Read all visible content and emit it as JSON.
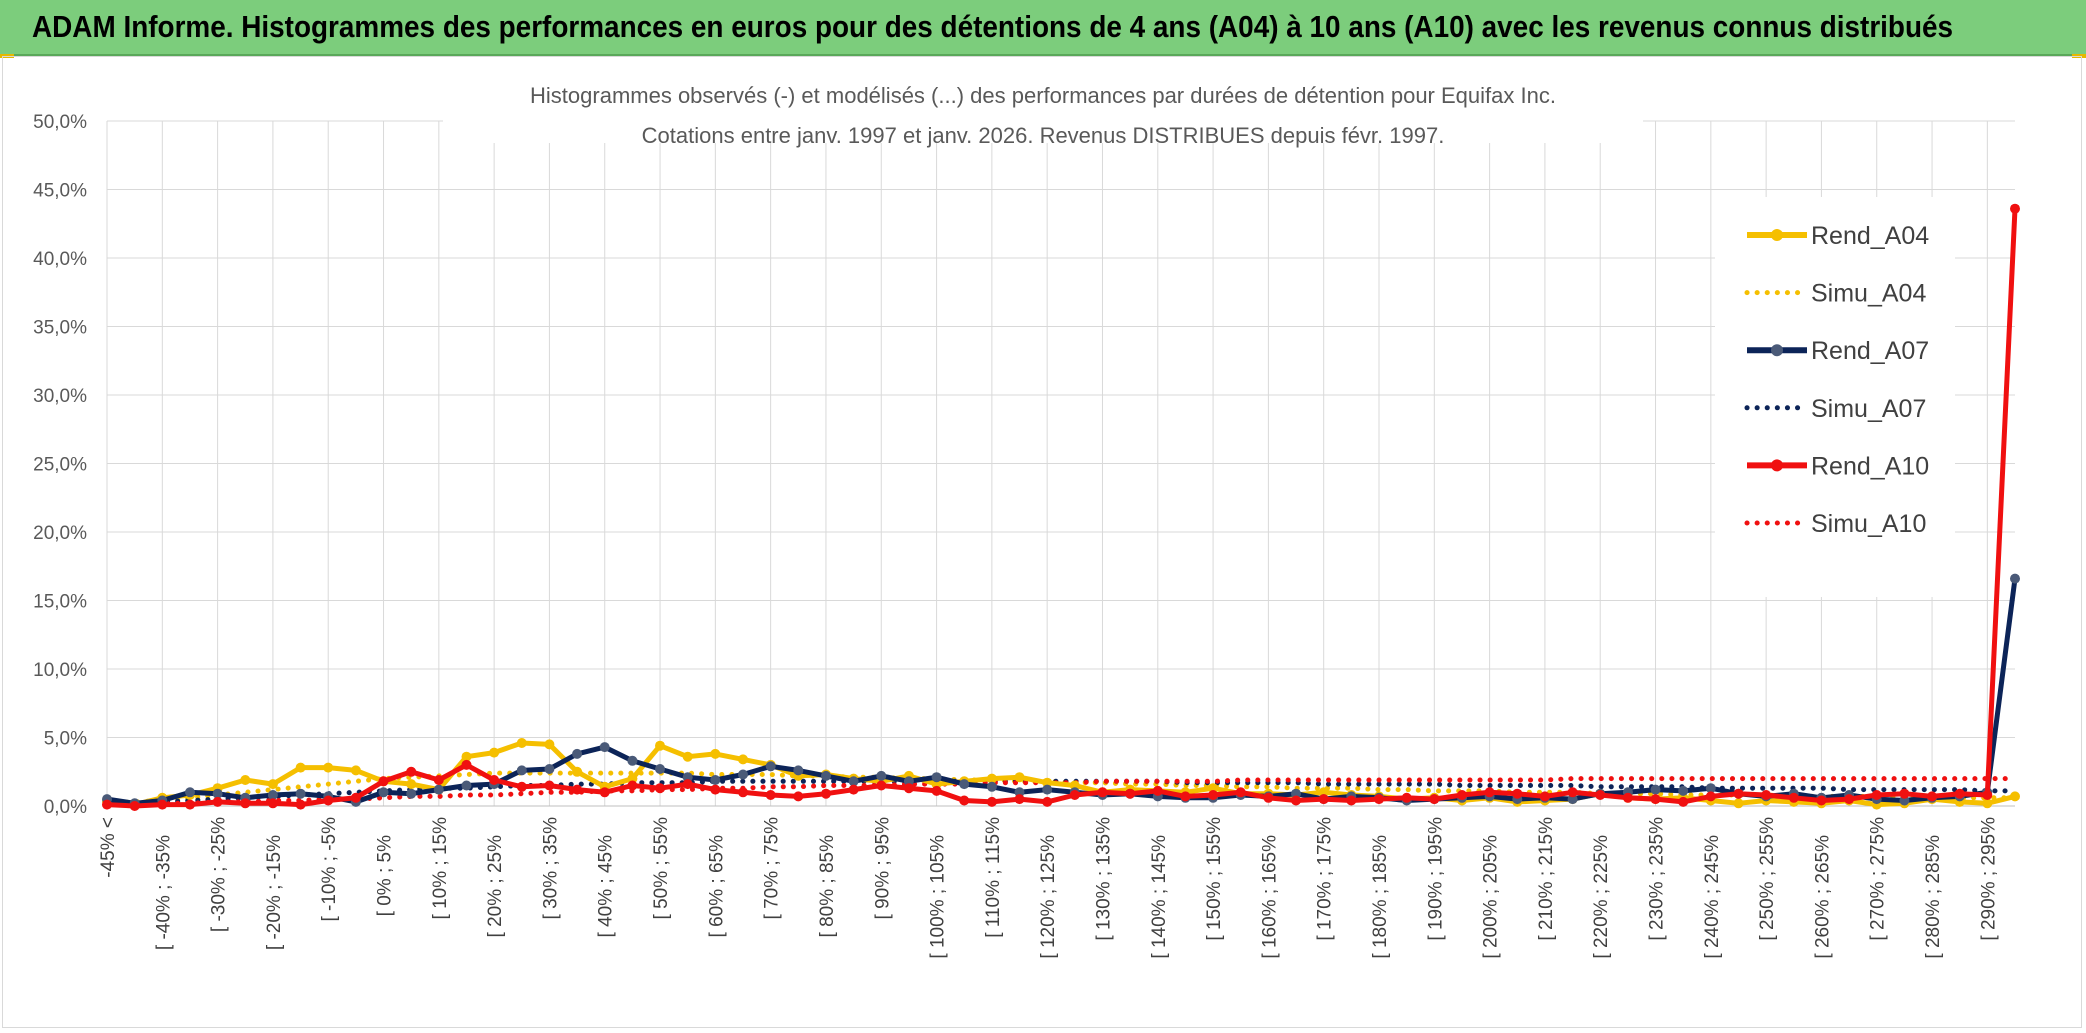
{
  "header": {
    "title": "ADAM Informe. Histogrammes des performances en euros pour des détentions de 4 ans (A04) à 10 ans (A10) avec les revenus connus distribués"
  },
  "chart_data": {
    "type": "line",
    "title_line1": "Histogrammes observés (-) et modélisés (...) des performances par durées de détention pour Equifax Inc.",
    "title_line2": "Cotations entre janv. 1997 et janv. 2026. Revenus DISTRIBUES depuis févr. 1997.",
    "ylim": [
      0,
      50
    ],
    "yticks": [
      "0,0%",
      "5,0%",
      "10,0%",
      "15,0%",
      "20,0%",
      "25,0%",
      "30,0%",
      "35,0%",
      "40,0%",
      "45,0%",
      "50,0%"
    ],
    "xtick_labels": [
      "-45% <",
      "[ -40% ; -35%",
      "[ -30% ; -25%",
      "[ -20% ; -15%",
      "[ -10% ; -5%",
      "[ 0% ; 5%",
      "[ 10% ; 15%",
      "[ 20% ; 25%",
      "[ 30% ; 35%",
      "[ 40% ; 45%",
      "[ 50% ; 55%",
      "[ 60% ; 65%",
      "[ 70% ; 75%",
      "[ 80% ; 85%",
      "[ 90% ; 95%",
      "[ 100% ; 105%",
      "[ 110% ; 115%",
      "[ 120% ; 125%",
      "[ 130% ; 135%",
      "[ 140% ; 145%",
      "[ 150% ; 155%",
      "[ 160% ; 165%",
      "[ 170% ; 175%",
      "[ 180% ; 185%",
      "[ 190% ; 195%",
      "[ 200% ; 205%",
      "[ 210% ; 215%",
      "[ 220% ; 225%",
      "[ 230% ; 235%",
      "[ 240% ; 245%",
      "[ 250% ; 255%",
      "[ 260% ; 265%",
      "[ 270% ; 275%",
      "[ 280% ; 285%",
      "[ 290% ; 295%"
    ],
    "n_bins": 70,
    "legend_position": "right",
    "series": [
      {
        "name": "Rend_A04",
        "style": "solid-marker",
        "color": "#f5bf00",
        "values": [
          0.3,
          0.1,
          0.6,
          0.8,
          1.3,
          1.9,
          1.6,
          2.8,
          2.8,
          2.6,
          1.8,
          1.6,
          1.2,
          3.6,
          3.9,
          4.6,
          4.5,
          2.5,
          1.4,
          2.0,
          4.4,
          3.6,
          3.8,
          3.4,
          3.0,
          2.2,
          2.3,
          2.0,
          1.8,
          2.2,
          1.6,
          1.8,
          2.0,
          2.1,
          1.7,
          1.5,
          1.0,
          1.2,
          1.1,
          1.0,
          1.3,
          0.9,
          0.9,
          0.8,
          1.0,
          0.8,
          0.7,
          0.5,
          0.6,
          0.4,
          0.6,
          0.3,
          0.4,
          0.5,
          0.9,
          0.6,
          0.5,
          0.6,
          0.4,
          0.2,
          0.4,
          0.3,
          0.2,
          0.4,
          0.1,
          0.2,
          0.5,
          0.3,
          0.2,
          0.7
        ]
      },
      {
        "name": "Simu_A04",
        "style": "dotted",
        "color": "#f5bf00",
        "values": [
          0.2,
          0.3,
          0.4,
          0.6,
          0.8,
          1.0,
          1.2,
          1.4,
          1.6,
          1.8,
          2.0,
          2.1,
          2.2,
          2.3,
          2.4,
          2.4,
          2.4,
          2.4,
          2.4,
          2.4,
          2.4,
          2.4,
          2.3,
          2.3,
          2.3,
          2.2,
          2.2,
          2.1,
          2.1,
          2.0,
          2.0,
          1.9,
          1.9,
          1.8,
          1.8,
          1.7,
          1.7,
          1.6,
          1.6,
          1.5,
          1.5,
          1.4,
          1.4,
          1.3,
          1.3,
          1.3,
          1.2,
          1.2,
          1.1,
          1.1,
          1.1,
          1.0,
          1.0,
          1.0,
          0.9,
          0.9,
          0.9,
          0.8,
          0.8,
          0.8,
          0.8,
          0.7,
          0.7,
          0.7,
          0.7,
          0.6,
          0.6,
          0.6,
          0.6,
          0.6
        ]
      },
      {
        "name": "Rend_A07",
        "style": "solid-marker",
        "color": "#0c2458",
        "values": [
          0.5,
          0.2,
          0.4,
          1.0,
          0.9,
          0.6,
          0.8,
          0.9,
          0.7,
          0.3,
          1.0,
          0.9,
          1.2,
          1.5,
          1.6,
          2.6,
          2.7,
          3.8,
          4.3,
          3.3,
          2.7,
          2.1,
          1.9,
          2.3,
          2.9,
          2.6,
          2.2,
          1.8,
          2.2,
          1.8,
          2.1,
          1.6,
          1.4,
          1.0,
          1.2,
          1.0,
          0.8,
          0.9,
          0.7,
          0.6,
          0.6,
          0.8,
          0.7,
          0.9,
          0.5,
          0.7,
          0.6,
          0.4,
          0.5,
          0.6,
          0.7,
          0.5,
          0.6,
          0.5,
          0.9,
          1.0,
          1.2,
          1.1,
          1.3,
          0.9,
          0.7,
          0.9,
          0.6,
          0.8,
          0.5,
          0.4,
          0.6,
          0.7,
          1.0,
          16.6
        ]
      },
      {
        "name": "Simu_A07",
        "style": "dotted",
        "color": "#0c2458",
        "values": [
          0.1,
          0.2,
          0.3,
          0.4,
          0.5,
          0.6,
          0.7,
          0.8,
          0.9,
          1.0,
          1.1,
          1.2,
          1.3,
          1.3,
          1.4,
          1.5,
          1.5,
          1.6,
          1.6,
          1.7,
          1.7,
          1.7,
          1.8,
          1.8,
          1.8,
          1.8,
          1.8,
          1.8,
          1.8,
          1.8,
          1.8,
          1.8,
          1.8,
          1.8,
          1.8,
          1.8,
          1.8,
          1.8,
          1.8,
          1.7,
          1.7,
          1.7,
          1.7,
          1.7,
          1.6,
          1.6,
          1.6,
          1.6,
          1.6,
          1.5,
          1.5,
          1.5,
          1.5,
          1.5,
          1.4,
          1.4,
          1.4,
          1.4,
          1.3,
          1.3,
          1.3,
          1.3,
          1.3,
          1.2,
          1.2,
          1.2,
          1.2,
          1.2,
          1.1,
          1.1
        ]
      },
      {
        "name": "Rend_A10",
        "style": "solid-marker",
        "color": "#f01010",
        "values": [
          0.1,
          0.0,
          0.1,
          0.1,
          0.3,
          0.2,
          0.2,
          0.1,
          0.4,
          0.6,
          1.8,
          2.5,
          1.9,
          3.0,
          1.9,
          1.4,
          1.5,
          1.2,
          1.0,
          1.5,
          1.3,
          1.6,
          1.2,
          1.0,
          0.8,
          0.7,
          0.9,
          1.2,
          1.5,
          1.3,
          1.1,
          0.4,
          0.3,
          0.5,
          0.3,
          0.8,
          1.0,
          0.9,
          1.1,
          0.7,
          0.8,
          1.0,
          0.6,
          0.4,
          0.5,
          0.4,
          0.5,
          0.6,
          0.5,
          0.8,
          1.0,
          0.9,
          0.7,
          1.0,
          0.8,
          0.6,
          0.5,
          0.3,
          0.7,
          0.9,
          0.8,
          0.6,
          0.4,
          0.5,
          0.8,
          0.9,
          0.7,
          0.9,
          0.8,
          43.6
        ]
      },
      {
        "name": "Simu_A10",
        "style": "dotted",
        "color": "#f01010",
        "values": [
          0.1,
          0.1,
          0.2,
          0.2,
          0.3,
          0.3,
          0.4,
          0.4,
          0.5,
          0.5,
          0.6,
          0.7,
          0.7,
          0.8,
          0.8,
          0.9,
          1.0,
          1.0,
          1.1,
          1.1,
          1.2,
          1.2,
          1.3,
          1.3,
          1.4,
          1.4,
          1.5,
          1.5,
          1.5,
          1.6,
          1.6,
          1.6,
          1.7,
          1.7,
          1.7,
          1.7,
          1.8,
          1.8,
          1.8,
          1.8,
          1.8,
          1.9,
          1.9,
          1.9,
          1.9,
          1.9,
          1.9,
          1.9,
          1.9,
          1.9,
          1.9,
          1.9,
          1.9,
          2.0,
          2.0,
          2.0,
          2.0,
          2.0,
          2.0,
          2.0,
          2.0,
          2.0,
          2.0,
          2.0,
          2.0,
          2.0,
          2.0,
          2.0,
          2.0,
          2.0
        ]
      }
    ]
  }
}
